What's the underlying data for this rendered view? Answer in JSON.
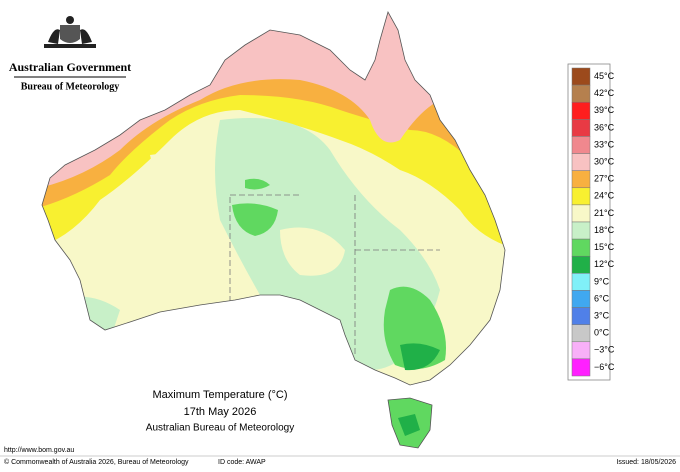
{
  "header": {
    "government": "Australian Government",
    "bureau": "Bureau of Meteorology"
  },
  "legend": {
    "items": [
      {
        "label": "45°C",
        "color": "#9c4a1c"
      },
      {
        "label": "42°C",
        "color": "#b5804e"
      },
      {
        "label": "39°C",
        "color": "#ff1e1e"
      },
      {
        "label": "36°C",
        "color": "#e83a44"
      },
      {
        "label": "33°C",
        "color": "#f0888e"
      },
      {
        "label": "30°C",
        "color": "#f8c2c2"
      },
      {
        "label": "27°C",
        "color": "#f8b040"
      },
      {
        "label": "24°C",
        "color": "#f8f030"
      },
      {
        "label": "21°C",
        "color": "#f8f8c8"
      },
      {
        "label": "18°C",
        "color": "#c8f0c8"
      },
      {
        "label": "15°C",
        "color": "#60d860"
      },
      {
        "label": "12°C",
        "color": "#20b048"
      },
      {
        "label": "9°C",
        "color": "#80f0f8"
      },
      {
        "label": "6°C",
        "color": "#40a8f0"
      },
      {
        "label": "3°C",
        "color": "#5080e8"
      },
      {
        "label": "0°C",
        "color": "#c8c8c8"
      },
      {
        "label": "−3°C",
        "color": "#f8b0f8"
      },
      {
        "label": "−6°C",
        "color": "#ff20ff"
      }
    ]
  },
  "title": {
    "line1": "Maximum Temperature (°C)",
    "line2": "17th May 2026",
    "line3": "Australian Bureau of Meteorology"
  },
  "footer": {
    "url": "http://www.bom.gov.au",
    "copyright": "© Commonwealth of Australia 2026, Bureau of Meteorology",
    "id_code": "ID code: AWAP",
    "issued": "Issued: 18/05/2026"
  }
}
